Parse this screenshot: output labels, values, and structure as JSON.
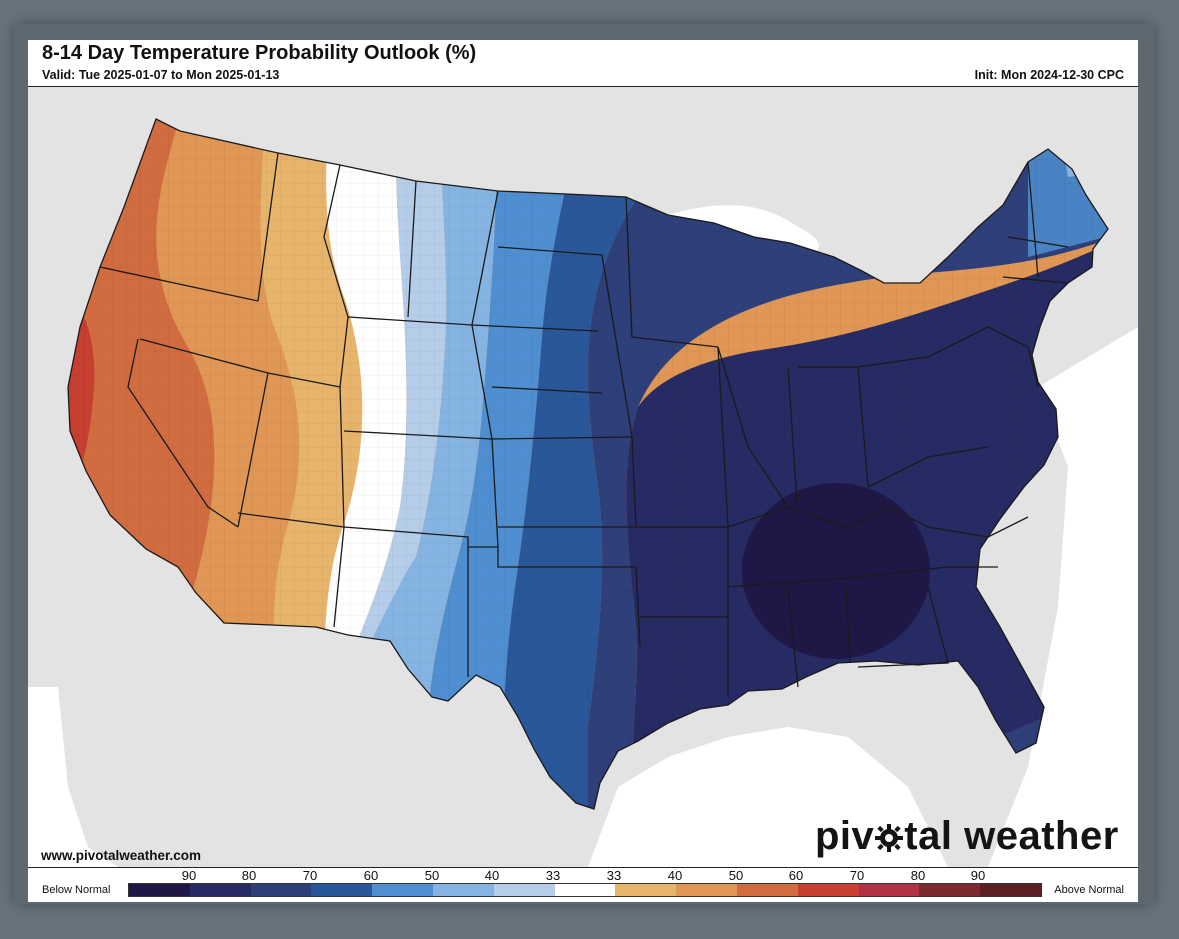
{
  "header": {
    "title": "8-14 Day Temperature Probability Outlook (%)",
    "valid": "Valid: Tue 2025-01-07 to Mon 2025-01-13",
    "init": "Init: Mon 2024-12-30 CPC"
  },
  "footer": {
    "url": "www.pivotalweather.com",
    "brand_prefix": "piv",
    "brand_suffix": "tal weather"
  },
  "legend": {
    "below_label": "Below Normal",
    "above_label": "Above Normal",
    "ticks": [
      "90",
      "80",
      "70",
      "60",
      "50",
      "40",
      "33",
      "33",
      "40",
      "50",
      "60",
      "70",
      "80",
      "90"
    ],
    "colors": [
      "#1f1846",
      "#262b63",
      "#2e3f7a",
      "#2a569a",
      "#4f8fd1",
      "#86b4e2",
      "#b6cdea",
      "#ffffff",
      "#e7b46c",
      "#e09654",
      "#d06c40",
      "#c73f30",
      "#b03245",
      "#7d2932",
      "#5c2024"
    ]
  },
  "map": {
    "land_color": "#e3e3e3",
    "water_color": "#ffffff"
  }
}
